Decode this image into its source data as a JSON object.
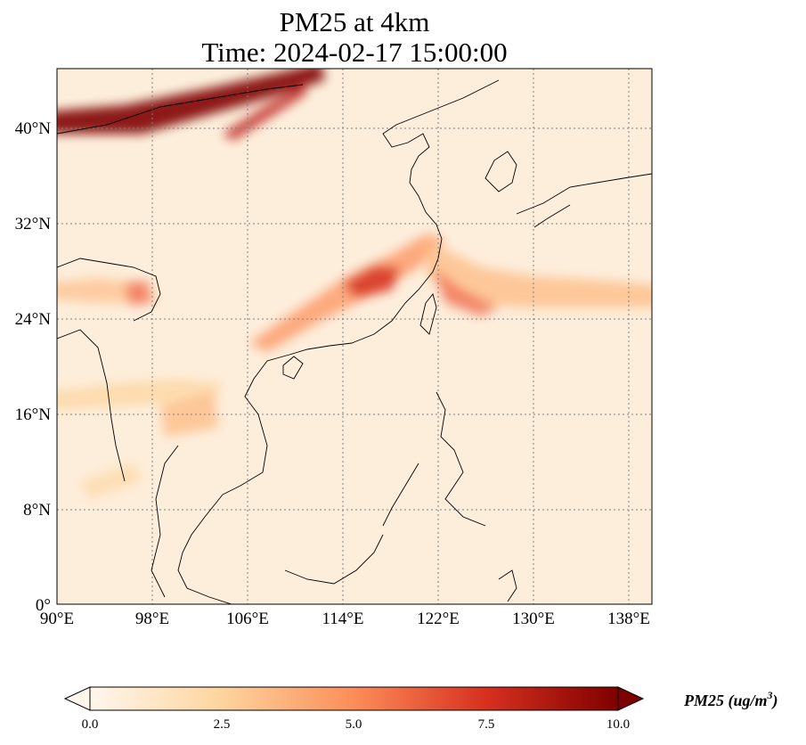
{
  "map": {
    "title_line1": "PM25 at 4km",
    "title_line2": "Time: 2024-02-17 15:00:00",
    "variable": "PM25",
    "lon_range": [
      90,
      140
    ],
    "lat_range": [
      0,
      45
    ],
    "lon_ticks": [
      90,
      98,
      106,
      114,
      122,
      130,
      138
    ],
    "lon_tick_labels": [
      "90°E",
      "98°E",
      "106°E",
      "114°E",
      "122°E",
      "130°E",
      "138°E"
    ],
    "lat_ticks": [
      0,
      8,
      16,
      24,
      32,
      40
    ],
    "lat_tick_labels": [
      "0°",
      "8°N",
      "16°N",
      "24°N",
      "32°N",
      "40°N"
    ],
    "gridlines": true,
    "colormap": "OrRd",
    "colors": {
      "low": "#fff7ec",
      "mid": "#fdbb84",
      "high": "#7f0000",
      "grid": "#808080",
      "coast": "#000000"
    }
  },
  "colorbar": {
    "label": "PM25 (ug/m",
    "label_superscript": "3",
    "label_close": ")",
    "min": 0.0,
    "max": 10.0,
    "ticks": [
      "0.0",
      "2.5",
      "5.0",
      "7.5",
      "10.0"
    ],
    "extend": "both"
  }
}
